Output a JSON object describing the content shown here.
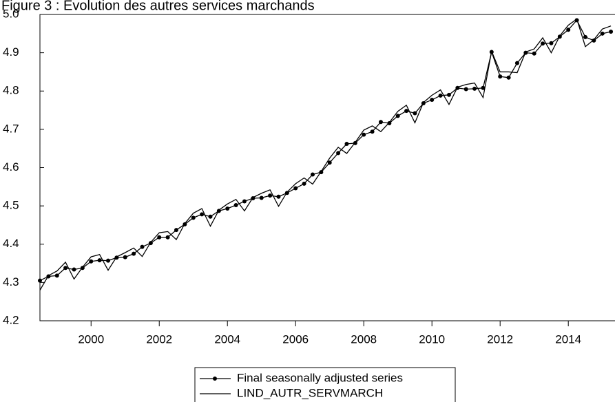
{
  "chart_data": {
    "type": "line",
    "title": "Figure 3 : Evolution des autres services marchands",
    "x": [
      1998.5,
      1998.75,
      1999,
      1999.25,
      1999.5,
      1999.75,
      2000,
      2000.25,
      2000.5,
      2000.75,
      2001,
      2001.25,
      2001.5,
      2001.75,
      2002,
      2002.25,
      2002.5,
      2002.75,
      2003,
      2003.25,
      2003.5,
      2003.75,
      2004,
      2004.25,
      2004.5,
      2004.75,
      2005,
      2005.25,
      2005.5,
      2005.75,
      2006,
      2006.25,
      2006.5,
      2006.75,
      2007,
      2007.25,
      2007.5,
      2007.75,
      2008,
      2008.25,
      2008.5,
      2008.75,
      2009,
      2009.25,
      2009.5,
      2009.75,
      2010,
      2010.25,
      2010.5,
      2010.75,
      2011,
      2011.25,
      2011.5,
      2011.75,
      2012,
      2012.25,
      2012.5,
      2012.75,
      2013,
      2013.25,
      2013.5,
      2013.75,
      2014,
      2014.25,
      2014.5,
      2014.75,
      2015,
      2015.25
    ],
    "series": [
      {
        "name": "Final seasonally adjusted series",
        "color": "#000000",
        "markers": true,
        "values": [
          4.305,
          4.316,
          4.318,
          4.338,
          4.334,
          4.338,
          4.355,
          4.358,
          4.357,
          4.365,
          4.366,
          4.375,
          4.393,
          4.403,
          4.418,
          4.418,
          4.437,
          4.452,
          4.469,
          4.478,
          4.472,
          4.487,
          4.493,
          4.502,
          4.512,
          4.52,
          4.521,
          4.527,
          4.524,
          4.534,
          4.546,
          4.558,
          4.582,
          4.588,
          4.613,
          4.638,
          4.662,
          4.664,
          4.686,
          4.694,
          4.719,
          4.716,
          4.735,
          4.748,
          4.742,
          4.768,
          4.777,
          4.788,
          4.79,
          4.808,
          4.805,
          4.806,
          4.808,
          4.902,
          4.838,
          4.835,
          4.873,
          4.9,
          4.898,
          4.924,
          4.925,
          4.942,
          4.96,
          4.985,
          4.941,
          4.932,
          4.95,
          4.955
        ]
      },
      {
        "name": "LIND_AUTR_SERVMARCH",
        "color": "#000000",
        "markers": false,
        "values": [
          4.28,
          4.318,
          4.33,
          4.353,
          4.309,
          4.34,
          4.367,
          4.373,
          4.332,
          4.367,
          4.378,
          4.39,
          4.368,
          4.405,
          4.43,
          4.433,
          4.412,
          4.454,
          4.481,
          4.493,
          4.447,
          4.489,
          4.505,
          4.517,
          4.487,
          4.522,
          4.533,
          4.542,
          4.499,
          4.536,
          4.558,
          4.573,
          4.557,
          4.59,
          4.625,
          4.653,
          4.637,
          4.666,
          4.698,
          4.709,
          4.694,
          4.718,
          4.747,
          4.763,
          4.717,
          4.77,
          4.789,
          4.803,
          4.765,
          4.81,
          4.817,
          4.821,
          4.783,
          4.904,
          4.85,
          4.85,
          4.848,
          4.902,
          4.91,
          4.939,
          4.9,
          4.944,
          4.972,
          4.988,
          4.916,
          4.934,
          4.962,
          4.97
        ]
      }
    ],
    "xlim": [
      1998.5,
      2015.37
    ],
    "xticks": [
      2000,
      2002,
      2004,
      2006,
      2008,
      2010,
      2012,
      2014
    ],
    "ylim": [
      4.2,
      5.0
    ],
    "yticks": [
      4.2,
      4.3,
      4.4,
      4.5,
      4.6,
      4.7,
      4.8,
      4.9,
      {
        "value": 5.0,
        "label": "5.0"
      }
    ],
    "grid": false
  }
}
